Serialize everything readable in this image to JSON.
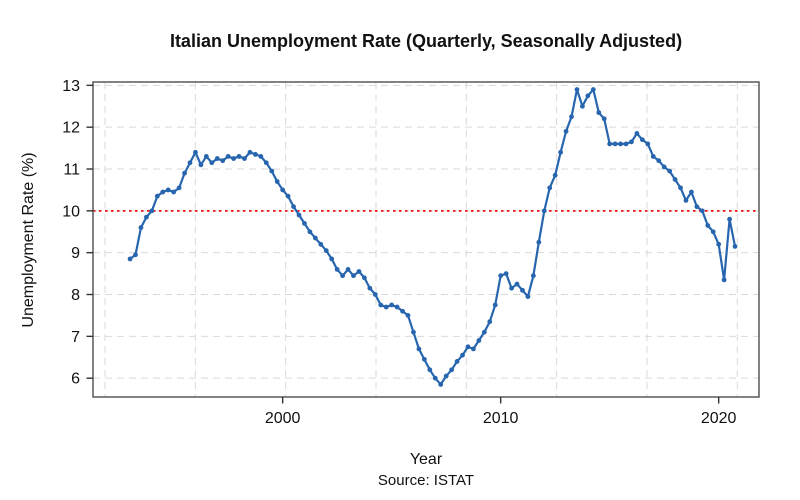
{
  "title": "Italian Unemployment Rate (Quarterly, Seasonally Adjusted)",
  "x_axis": {
    "label": "Year",
    "ticks": [
      "2000",
      "2010",
      "2020"
    ]
  },
  "y_axis": {
    "label": "Unemployment Rate (%)",
    "ticks": [
      "6",
      "7",
      "8",
      "9",
      "10",
      "11",
      "12",
      "13"
    ]
  },
  "caption": "Source: ISTAT",
  "colors": {
    "series": "#2766ae",
    "reference_line": "#ee1111",
    "grid": "#d9d9d9",
    "axis": "#333333",
    "box": "#4d4d4d"
  },
  "chart_data": {
    "type": "line",
    "title": "Italian Unemployment Rate (Quarterly, Seasonally Adjusted)",
    "xlabel": "Year",
    "ylabel": "Unemployment Rate (%)",
    "source": "Source: ISTAT",
    "frequency": "quarterly",
    "x_start": 1993.0,
    "x_step": 0.25,
    "xlim": [
      1991.3,
      2021.85
    ],
    "ylim": [
      5.55,
      13.08
    ],
    "x_ticks": [
      2000,
      2010,
      2020
    ],
    "y_ticks": [
      6,
      7,
      8,
      9,
      10,
      11,
      12,
      13
    ],
    "grid": true,
    "legend": "none",
    "reference_line": {
      "y": 10,
      "style": "dotted",
      "color": "#ee1111"
    },
    "series": [
      {
        "name": "Unemployment rate (%)",
        "color": "#2766ae",
        "marker": "filled-circle",
        "values": [
          8.85,
          8.95,
          9.6,
          9.85,
          10.0,
          10.35,
          10.45,
          10.5,
          10.45,
          10.55,
          10.9,
          11.15,
          11.4,
          11.1,
          11.3,
          11.15,
          11.25,
          11.2,
          11.3,
          11.25,
          11.3,
          11.25,
          11.4,
          11.35,
          11.3,
          11.15,
          10.95,
          10.7,
          10.5,
          10.35,
          10.1,
          9.9,
          9.7,
          9.5,
          9.35,
          9.2,
          9.05,
          8.85,
          8.6,
          8.45,
          8.6,
          8.45,
          8.55,
          8.4,
          8.15,
          8.0,
          7.75,
          7.7,
          7.75,
          7.7,
          7.6,
          7.5,
          7.1,
          6.7,
          6.45,
          6.2,
          6.0,
          5.85,
          6.05,
          6.2,
          6.4,
          6.55,
          6.75,
          6.7,
          6.9,
          7.1,
          7.35,
          7.75,
          8.45,
          8.5,
          8.15,
          8.25,
          8.1,
          7.95,
          8.45,
          9.25,
          10.0,
          10.55,
          10.85,
          11.4,
          11.9,
          12.25,
          12.9,
          12.5,
          12.75,
          12.9,
          12.35,
          12.2,
          11.6,
          11.6,
          11.6,
          11.6,
          11.65,
          11.85,
          11.7,
          11.6,
          11.3,
          11.2,
          11.05,
          10.95,
          10.75,
          10.55,
          10.25,
          10.45,
          10.1,
          10.0,
          9.65,
          9.5,
          9.2,
          8.35,
          9.8,
          9.15
        ]
      }
    ]
  }
}
